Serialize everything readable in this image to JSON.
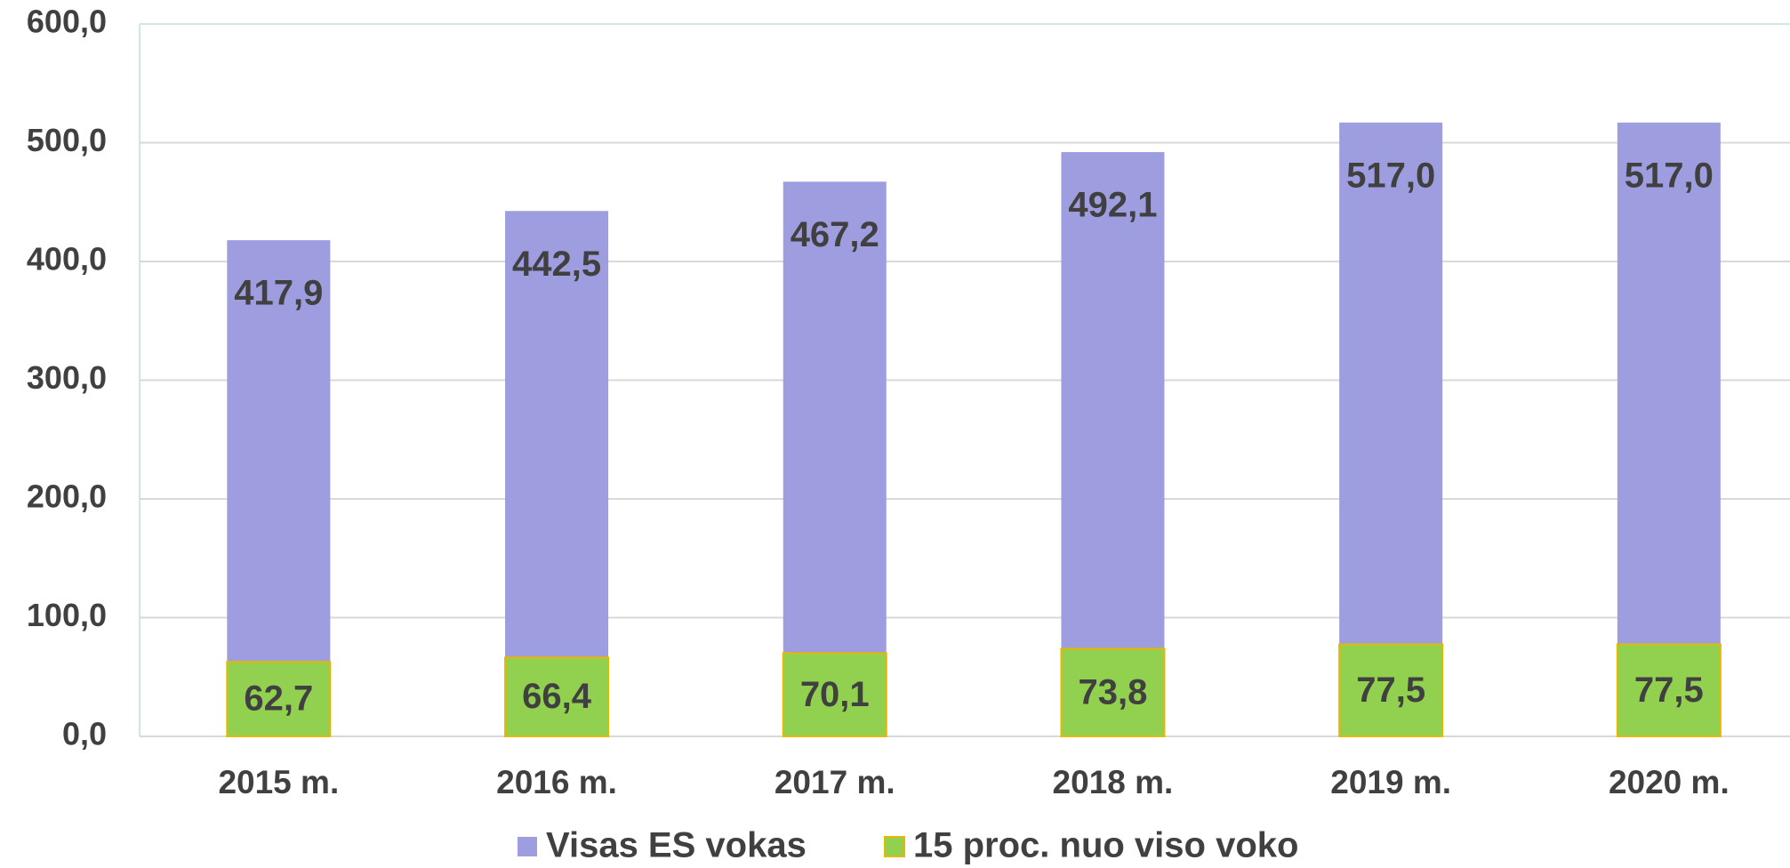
{
  "chart_data": {
    "type": "bar",
    "categories": [
      "2015 m.",
      "2016 m.",
      "2017 m.",
      "2018 m.",
      "2019 m.",
      "2020 m."
    ],
    "series": [
      {
        "name": "Visas ES vokas",
        "color": "#9e9ddf",
        "values": [
          417.9,
          442.5,
          467.2,
          492.1,
          517.0,
          517.0
        ],
        "value_labels": [
          "417,9",
          "442,5",
          "467,2",
          "492,1",
          "517,0",
          "517,0"
        ]
      },
      {
        "name": "15 proc. nuo viso voko",
        "color": "#92d050",
        "values": [
          62.7,
          66.4,
          70.1,
          73.8,
          77.5,
          77.5
        ],
        "value_labels": [
          "62,7",
          "66,4",
          "70,1",
          "73,8",
          "77,5",
          "77,5"
        ]
      }
    ],
    "ylim": [
      0,
      600
    ],
    "yticks": [
      {
        "value": 0,
        "label": "0,0"
      },
      {
        "value": 100,
        "label": "100,0"
      },
      {
        "value": 200,
        "label": "200,0"
      },
      {
        "value": 300,
        "label": "300,0"
      },
      {
        "value": 400,
        "label": "400,0"
      },
      {
        "value": 500,
        "label": "500,0"
      },
      {
        "value": 600,
        "label": "600,0"
      }
    ],
    "grid": true,
    "legend": "bottom"
  }
}
